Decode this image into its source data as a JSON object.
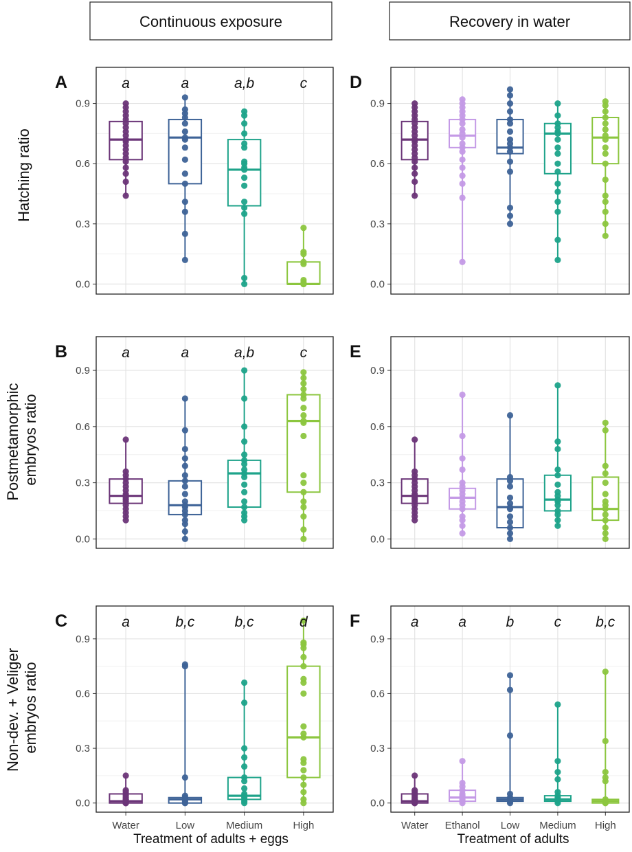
{
  "colors": {
    "Water": "#6b3578",
    "Ethanol": "#c49ae6",
    "Low": "#3e6397",
    "Medium": "#1ea38a",
    "High": "#8cc63f"
  },
  "headers": {
    "left": "Continuous exposure",
    "right": "Recovery in water"
  },
  "row_labels": {
    "A": [
      "Hatching ratio"
    ],
    "B": [
      "Postmetamorphic",
      "embryos ratio"
    ],
    "C": [
      "Non-dev. + Veliger",
      "embryos ratio"
    ]
  },
  "x_titles": {
    "left": "Treatment of adults + eggs",
    "right": "Treatment of adults"
  },
  "chart_data": [
    {
      "panel": "A",
      "type": "boxplot",
      "ylabel": "Hatching ratio",
      "ylim": [
        -0.05,
        1.08
      ],
      "yticks": [
        "0.0",
        "0.3",
        "0.6",
        "0.9"
      ],
      "xticks": [],
      "groups": [
        {
          "name": "Water",
          "letter": "a",
          "min": 0.44,
          "q1": 0.62,
          "median": 0.72,
          "q3": 0.81,
          "max": 0.9,
          "points": [
            0.44,
            0.51,
            0.55,
            0.58,
            0.61,
            0.63,
            0.65,
            0.67,
            0.69,
            0.71,
            0.72,
            0.74,
            0.76,
            0.78,
            0.8,
            0.82,
            0.84,
            0.86,
            0.88,
            0.9
          ]
        },
        {
          "name": "Low",
          "letter": "a",
          "min": 0.12,
          "q1": 0.5,
          "median": 0.73,
          "q3": 0.82,
          "max": 0.93,
          "points": [
            0.12,
            0.25,
            0.36,
            0.41,
            0.5,
            0.55,
            0.62,
            0.68,
            0.72,
            0.73,
            0.76,
            0.8,
            0.83,
            0.85,
            0.87,
            0.93
          ]
        },
        {
          "name": "Medium",
          "letter": "a,b",
          "min": 0.0,
          "q1": 0.39,
          "median": 0.57,
          "q3": 0.72,
          "max": 0.86,
          "points": [
            0.0,
            0.03,
            0.35,
            0.38,
            0.41,
            0.49,
            0.53,
            0.57,
            0.58,
            0.6,
            0.61,
            0.68,
            0.7,
            0.75,
            0.8,
            0.84,
            0.86
          ]
        },
        {
          "name": "High",
          "letter": "c",
          "min": 0.0,
          "q1": 0.0,
          "median": 0.0,
          "q3": 0.11,
          "max": 0.28,
          "points": [
            0.0,
            0.0,
            0.0,
            0.0,
            0.0,
            0.0,
            0.01,
            0.02,
            0.1,
            0.11,
            0.15,
            0.16,
            0.28
          ]
        }
      ]
    },
    {
      "panel": "D",
      "type": "boxplot",
      "ylabel": "",
      "ylim": [
        -0.05,
        1.08
      ],
      "yticks": [
        "0.0",
        "0.3",
        "0.6",
        "0.9"
      ],
      "xticks": [],
      "groups": [
        {
          "name": "Water",
          "letter": "",
          "min": 0.44,
          "q1": 0.62,
          "median": 0.72,
          "q3": 0.81,
          "max": 0.9,
          "points": [
            0.44,
            0.51,
            0.55,
            0.58,
            0.61,
            0.63,
            0.65,
            0.67,
            0.69,
            0.71,
            0.72,
            0.74,
            0.76,
            0.78,
            0.8,
            0.82,
            0.84,
            0.86,
            0.88,
            0.9
          ]
        },
        {
          "name": "Ethanol",
          "letter": "",
          "min": 0.11,
          "q1": 0.68,
          "median": 0.74,
          "q3": 0.82,
          "max": 0.92,
          "points": [
            0.11,
            0.43,
            0.5,
            0.54,
            0.58,
            0.62,
            0.66,
            0.68,
            0.7,
            0.73,
            0.75,
            0.77,
            0.8,
            0.82,
            0.84,
            0.86,
            0.88,
            0.9,
            0.92
          ]
        },
        {
          "name": "Low",
          "letter": "",
          "min": 0.3,
          "q1": 0.65,
          "median": 0.68,
          "q3": 0.82,
          "max": 0.97,
          "points": [
            0.3,
            0.34,
            0.38,
            0.56,
            0.61,
            0.66,
            0.68,
            0.7,
            0.72,
            0.76,
            0.8,
            0.82,
            0.86,
            0.9,
            0.94,
            0.97
          ]
        },
        {
          "name": "Medium",
          "letter": "",
          "min": 0.12,
          "q1": 0.55,
          "median": 0.75,
          "q3": 0.8,
          "max": 0.9,
          "points": [
            0.12,
            0.22,
            0.36,
            0.41,
            0.46,
            0.5,
            0.56,
            0.6,
            0.65,
            0.68,
            0.72,
            0.75,
            0.76,
            0.78,
            0.8,
            0.84,
            0.9
          ]
        },
        {
          "name": "High",
          "letter": "",
          "min": 0.24,
          "q1": 0.6,
          "median": 0.73,
          "q3": 0.83,
          "max": 0.91,
          "points": [
            0.24,
            0.3,
            0.36,
            0.41,
            0.44,
            0.52,
            0.6,
            0.65,
            0.68,
            0.72,
            0.74,
            0.77,
            0.8,
            0.83,
            0.86,
            0.89,
            0.91
          ]
        }
      ]
    },
    {
      "panel": "B",
      "type": "boxplot",
      "ylabel": "Postmetamorphic embryos ratio",
      "ylim": [
        -0.05,
        1.08
      ],
      "yticks": [
        "0.0",
        "0.3",
        "0.6",
        "0.9"
      ],
      "xticks": [],
      "groups": [
        {
          "name": "Water",
          "letter": "a",
          "min": 0.1,
          "q1": 0.19,
          "median": 0.23,
          "q3": 0.32,
          "max": 0.53,
          "points": [
            0.1,
            0.12,
            0.14,
            0.16,
            0.18,
            0.2,
            0.21,
            0.22,
            0.23,
            0.24,
            0.26,
            0.28,
            0.3,
            0.32,
            0.34,
            0.36,
            0.53
          ]
        },
        {
          "name": "Low",
          "letter": "a",
          "min": 0.0,
          "q1": 0.13,
          "median": 0.18,
          "q3": 0.31,
          "max": 0.75,
          "points": [
            0.0,
            0.04,
            0.08,
            0.1,
            0.13,
            0.15,
            0.17,
            0.18,
            0.2,
            0.24,
            0.28,
            0.31,
            0.34,
            0.39,
            0.43,
            0.48,
            0.58,
            0.75
          ]
        },
        {
          "name": "Medium",
          "letter": "a,b",
          "min": 0.1,
          "q1": 0.17,
          "median": 0.35,
          "q3": 0.42,
          "max": 0.9,
          "points": [
            0.1,
            0.12,
            0.14,
            0.17,
            0.2,
            0.25,
            0.29,
            0.33,
            0.35,
            0.37,
            0.4,
            0.42,
            0.45,
            0.52,
            0.6,
            0.75,
            0.9
          ]
        },
        {
          "name": "High",
          "letter": "c",
          "min": 0.0,
          "q1": 0.25,
          "median": 0.63,
          "q3": 0.77,
          "max": 0.89,
          "points": [
            0.0,
            0.05,
            0.12,
            0.17,
            0.2,
            0.25,
            0.3,
            0.34,
            0.55,
            0.62,
            0.63,
            0.66,
            0.7,
            0.75,
            0.77,
            0.8,
            0.83,
            0.86,
            0.89
          ]
        }
      ]
    },
    {
      "panel": "E",
      "type": "boxplot",
      "ylabel": "",
      "ylim": [
        -0.05,
        1.08
      ],
      "yticks": [
        "0.0",
        "0.3",
        "0.6",
        "0.9"
      ],
      "xticks": [],
      "groups": [
        {
          "name": "Water",
          "letter": "",
          "min": 0.1,
          "q1": 0.19,
          "median": 0.23,
          "q3": 0.32,
          "max": 0.53,
          "points": [
            0.1,
            0.12,
            0.14,
            0.16,
            0.18,
            0.2,
            0.21,
            0.22,
            0.23,
            0.24,
            0.26,
            0.28,
            0.3,
            0.32,
            0.34,
            0.36,
            0.53
          ]
        },
        {
          "name": "Ethanol",
          "letter": "",
          "min": 0.03,
          "q1": 0.16,
          "median": 0.22,
          "q3": 0.27,
          "max": 0.77,
          "points": [
            0.03,
            0.07,
            0.1,
            0.12,
            0.16,
            0.18,
            0.2,
            0.22,
            0.24,
            0.26,
            0.28,
            0.3,
            0.37,
            0.43,
            0.55,
            0.77
          ]
        },
        {
          "name": "Low",
          "letter": "",
          "min": 0.0,
          "q1": 0.06,
          "median": 0.17,
          "q3": 0.32,
          "max": 0.66,
          "points": [
            0.0,
            0.03,
            0.06,
            0.09,
            0.12,
            0.16,
            0.17,
            0.19,
            0.22,
            0.28,
            0.31,
            0.33,
            0.66
          ]
        },
        {
          "name": "Medium",
          "letter": "",
          "min": 0.07,
          "q1": 0.15,
          "median": 0.21,
          "q3": 0.34,
          "max": 0.82,
          "points": [
            0.07,
            0.1,
            0.13,
            0.15,
            0.18,
            0.2,
            0.21,
            0.23,
            0.25,
            0.29,
            0.34,
            0.37,
            0.48,
            0.52,
            0.82
          ]
        },
        {
          "name": "High",
          "letter": "",
          "min": 0.0,
          "q1": 0.1,
          "median": 0.16,
          "q3": 0.33,
          "max": 0.62,
          "points": [
            0.0,
            0.03,
            0.06,
            0.1,
            0.13,
            0.16,
            0.18,
            0.2,
            0.24,
            0.3,
            0.35,
            0.39,
            0.58,
            0.62
          ]
        }
      ]
    },
    {
      "panel": "C",
      "type": "boxplot",
      "ylabel": "Non-dev. + Veliger embryos ratio",
      "ylim": [
        -0.05,
        1.08
      ],
      "yticks": [
        "0.0",
        "0.3",
        "0.6",
        "0.9"
      ],
      "xticks": [
        "Water",
        "Low",
        "Medium",
        "High"
      ],
      "groups": [
        {
          "name": "Water",
          "letter": "a",
          "min": 0.0,
          "q1": 0.0,
          "median": 0.01,
          "q3": 0.05,
          "max": 0.15,
          "points": [
            0.0,
            0.0,
            0.0,
            0.0,
            0.01,
            0.01,
            0.02,
            0.02,
            0.03,
            0.04,
            0.05,
            0.06,
            0.07,
            0.15
          ]
        },
        {
          "name": "Low",
          "letter": "b,c",
          "min": 0.0,
          "q1": 0.0,
          "median": 0.02,
          "q3": 0.03,
          "max": 0.76,
          "points": [
            0.0,
            0.0,
            0.01,
            0.02,
            0.02,
            0.03,
            0.04,
            0.14,
            0.75,
            0.76
          ]
        },
        {
          "name": "Medium",
          "letter": "b,c",
          "min": 0.0,
          "q1": 0.02,
          "median": 0.04,
          "q3": 0.14,
          "max": 0.66,
          "points": [
            0.0,
            0.01,
            0.02,
            0.03,
            0.04,
            0.05,
            0.08,
            0.12,
            0.14,
            0.2,
            0.25,
            0.3,
            0.55,
            0.66
          ]
        },
        {
          "name": "High",
          "letter": "d",
          "min": 0.0,
          "q1": 0.14,
          "median": 0.36,
          "q3": 0.75,
          "max": 1.0,
          "points": [
            0.0,
            0.02,
            0.06,
            0.1,
            0.14,
            0.18,
            0.22,
            0.24,
            0.36,
            0.38,
            0.42,
            0.6,
            0.66,
            0.68,
            0.75,
            0.8,
            0.85,
            0.87,
            0.88,
            1.0
          ]
        }
      ]
    },
    {
      "panel": "F",
      "type": "boxplot",
      "ylabel": "",
      "ylim": [
        -0.05,
        1.08
      ],
      "yticks": [
        "0.0",
        "0.3",
        "0.6",
        "0.9"
      ],
      "xticks": [
        "Water",
        "Ethanol",
        "Low",
        "Medium",
        "High"
      ],
      "groups": [
        {
          "name": "Water",
          "letter": "a",
          "min": 0.0,
          "q1": 0.0,
          "median": 0.01,
          "q3": 0.05,
          "max": 0.15,
          "points": [
            0.0,
            0.0,
            0.0,
            0.0,
            0.01,
            0.01,
            0.02,
            0.02,
            0.03,
            0.04,
            0.05,
            0.06,
            0.07,
            0.15
          ]
        },
        {
          "name": "Ethanol",
          "letter": "a",
          "min": 0.0,
          "q1": 0.01,
          "median": 0.03,
          "q3": 0.07,
          "max": 0.23,
          "points": [
            0.0,
            0.01,
            0.02,
            0.03,
            0.04,
            0.05,
            0.07,
            0.09,
            0.11,
            0.23
          ]
        },
        {
          "name": "Low",
          "letter": "b",
          "min": 0.0,
          "q1": 0.01,
          "median": 0.02,
          "q3": 0.03,
          "max": 0.7,
          "points": [
            0.0,
            0.01,
            0.02,
            0.03,
            0.05,
            0.37,
            0.62,
            0.7
          ]
        },
        {
          "name": "Medium",
          "letter": "c",
          "min": 0.0,
          "q1": 0.01,
          "median": 0.02,
          "q3": 0.04,
          "max": 0.54,
          "points": [
            0.0,
            0.01,
            0.02,
            0.03,
            0.04,
            0.06,
            0.13,
            0.17,
            0.23,
            0.54
          ]
        },
        {
          "name": "High",
          "letter": "b,c",
          "min": 0.0,
          "q1": 0.0,
          "median": 0.01,
          "q3": 0.02,
          "max": 0.72,
          "points": [
            0.0,
            0.0,
            0.01,
            0.02,
            0.12,
            0.14,
            0.17,
            0.34,
            0.72
          ]
        }
      ]
    }
  ]
}
